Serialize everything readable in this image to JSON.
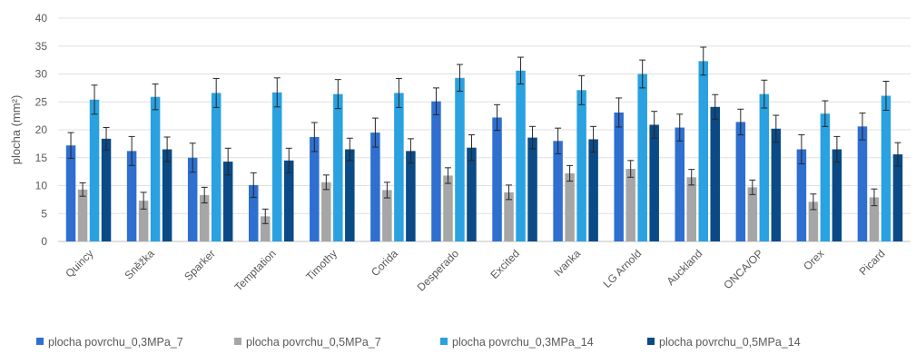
{
  "chart_data": {
    "type": "bar",
    "title": "",
    "xlabel": "",
    "ylabel": "plocha (mm²)",
    "ylim": [
      0,
      40
    ],
    "yticks": [
      0,
      5,
      10,
      15,
      20,
      25,
      30,
      35,
      40
    ],
    "grid": true,
    "legend_position": "bottom",
    "categories": [
      "Quincy",
      "Sněžka",
      "Sparker",
      "Temptation",
      "Timothy",
      "Corida",
      "Desperado",
      "Excited",
      "Ivanka",
      "LG Arnold",
      "Auckland",
      "ONCA/OP",
      "Orex",
      "Picard"
    ],
    "series": [
      {
        "name": "plocha povrchu_0,3MPa_7",
        "color": "#2E6FD0",
        "values": [
          17.2,
          16.2,
          15.0,
          10.1,
          18.7,
          19.5,
          25.1,
          22.2,
          18.0,
          23.1,
          20.4,
          21.4,
          16.5,
          20.6
        ],
        "errors": [
          2.3,
          2.6,
          2.6,
          2.2,
          2.6,
          2.6,
          2.4,
          2.3,
          2.3,
          2.6,
          2.4,
          2.3,
          2.6,
          2.4
        ]
      },
      {
        "name": "plocha povrchu_0,5MPa_7",
        "color": "#A6A6A6",
        "values": [
          9.3,
          7.3,
          8.3,
          4.5,
          10.6,
          9.2,
          11.8,
          8.8,
          12.2,
          13.0,
          11.5,
          9.7,
          7.1,
          7.9
        ],
        "errors": [
          1.2,
          1.5,
          1.4,
          1.3,
          1.3,
          1.4,
          1.4,
          1.3,
          1.4,
          1.5,
          1.4,
          1.3,
          1.4,
          1.5
        ]
      },
      {
        "name": "plocha povrchu_0,3MPa_14",
        "color": "#2AA1E0",
        "values": [
          25.4,
          25.9,
          26.6,
          26.7,
          26.4,
          26.6,
          29.3,
          30.6,
          27.1,
          30.0,
          32.3,
          26.4,
          22.9,
          26.1
        ],
        "errors": [
          2.6,
          2.3,
          2.6,
          2.6,
          2.6,
          2.6,
          2.4,
          2.4,
          2.6,
          2.5,
          2.5,
          2.5,
          2.3,
          2.6
        ]
      },
      {
        "name": "plocha povrchu_0,5MPa_14",
        "color": "#0A4A86",
        "values": [
          18.4,
          16.5,
          14.3,
          14.5,
          16.5,
          16.2,
          16.8,
          18.6,
          18.3,
          20.9,
          24.1,
          20.2,
          16.5,
          15.6
        ],
        "errors": [
          2.0,
          2.2,
          2.4,
          2.2,
          2.0,
          2.2,
          2.3,
          2.0,
          2.3,
          2.4,
          2.2,
          2.4,
          2.3,
          2.1
        ]
      }
    ]
  }
}
